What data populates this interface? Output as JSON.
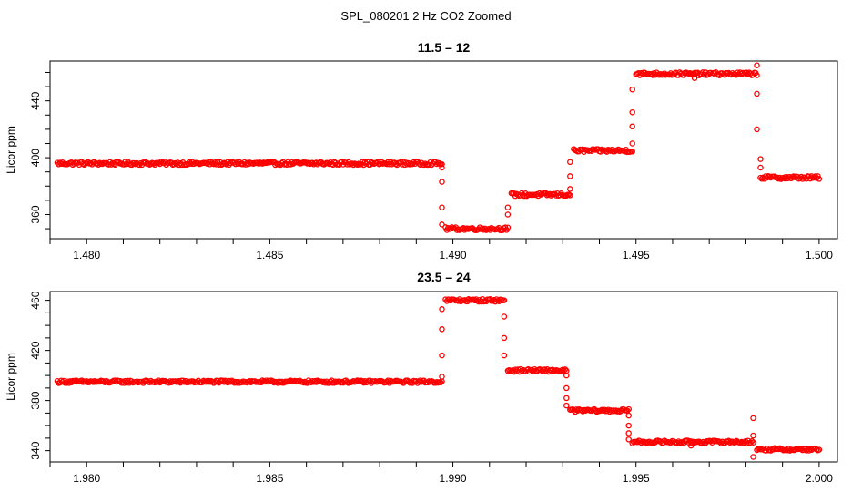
{
  "page": {
    "title": "SPL_080201  2 Hz CO2 Zoomed"
  },
  "chart_data": [
    {
      "type": "scatter",
      "title": "11.5 – 12",
      "xlabel": "",
      "ylabel": "Licor ppm",
      "xlim": [
        1.479,
        1.5005
      ],
      "ylim": [
        343,
        468
      ],
      "xticks": [
        "1.480",
        "1.485",
        "1.490",
        "1.495",
        "1.500"
      ],
      "yticks": [
        "360",
        "400",
        "440"
      ],
      "grid": false,
      "color": "#ff0000",
      "levels": [
        {
          "x_start": 1.4792,
          "x_end": 1.4897,
          "y": 396
        },
        {
          "x_start": 1.4898,
          "x_end": 1.4915,
          "y": 350
        },
        {
          "x_start": 1.4916,
          "x_end": 1.4932,
          "y": 374
        },
        {
          "x_start": 1.4933,
          "x_end": 1.4949,
          "y": 405
        },
        {
          "x_start": 1.495,
          "x_end": 1.4983,
          "y": 459
        },
        {
          "x_start": 1.4984,
          "x_end": 1.5,
          "y": 386
        }
      ],
      "transition_points": [
        {
          "x": 1.4897,
          "y": 393
        },
        {
          "x": 1.4897,
          "y": 383
        },
        {
          "x": 1.4897,
          "y": 365
        },
        {
          "x": 1.4897,
          "y": 353
        },
        {
          "x": 1.4915,
          "y": 360
        },
        {
          "x": 1.4915,
          "y": 365
        },
        {
          "x": 1.4932,
          "y": 378
        },
        {
          "x": 1.4932,
          "y": 387
        },
        {
          "x": 1.4932,
          "y": 397
        },
        {
          "x": 1.4949,
          "y": 410
        },
        {
          "x": 1.4949,
          "y": 422
        },
        {
          "x": 1.4949,
          "y": 432
        },
        {
          "x": 1.4949,
          "y": 448
        },
        {
          "x": 1.4966,
          "y": 456
        },
        {
          "x": 1.4983,
          "y": 465
        },
        {
          "x": 1.4983,
          "y": 445
        },
        {
          "x": 1.4983,
          "y": 420
        },
        {
          "x": 1.4984,
          "y": 399
        },
        {
          "x": 1.4984,
          "y": 393
        }
      ]
    },
    {
      "type": "scatter",
      "title": "23.5 – 24",
      "xlabel": "",
      "ylabel": "Licor ppm",
      "xlim": [
        1.979,
        2.0005
      ],
      "ylim": [
        331,
        467
      ],
      "xticks": [
        "1.980",
        "1.985",
        "1.990",
        "1.995",
        "2.000"
      ],
      "yticks": [
        "340",
        "380",
        "420",
        "460"
      ],
      "grid": false,
      "color": "#ff0000",
      "levels": [
        {
          "x_start": 1.9792,
          "x_end": 1.9897,
          "y": 395
        },
        {
          "x_start": 1.9898,
          "x_end": 1.9914,
          "y": 460
        },
        {
          "x_start": 1.9915,
          "x_end": 1.9931,
          "y": 404
        },
        {
          "x_start": 1.9932,
          "x_end": 1.9948,
          "y": 372
        },
        {
          "x_start": 1.9949,
          "x_end": 1.9982,
          "y": 347
        },
        {
          "x_start": 1.9983,
          "x_end": 2.0,
          "y": 341
        }
      ],
      "transition_points": [
        {
          "x": 1.9897,
          "y": 399
        },
        {
          "x": 1.9897,
          "y": 416
        },
        {
          "x": 1.9897,
          "y": 437
        },
        {
          "x": 1.9897,
          "y": 453
        },
        {
          "x": 1.9914,
          "y": 447
        },
        {
          "x": 1.9914,
          "y": 430
        },
        {
          "x": 1.9914,
          "y": 416
        },
        {
          "x": 1.9931,
          "y": 400
        },
        {
          "x": 1.9931,
          "y": 390
        },
        {
          "x": 1.9931,
          "y": 382
        },
        {
          "x": 1.9931,
          "y": 376
        },
        {
          "x": 1.9948,
          "y": 368
        },
        {
          "x": 1.9948,
          "y": 360
        },
        {
          "x": 1.9948,
          "y": 354
        },
        {
          "x": 1.9948,
          "y": 349
        },
        {
          "x": 1.9965,
          "y": 344
        },
        {
          "x": 1.9982,
          "y": 366
        },
        {
          "x": 1.9982,
          "y": 352
        },
        {
          "x": 1.9982,
          "y": 335
        }
      ]
    }
  ]
}
